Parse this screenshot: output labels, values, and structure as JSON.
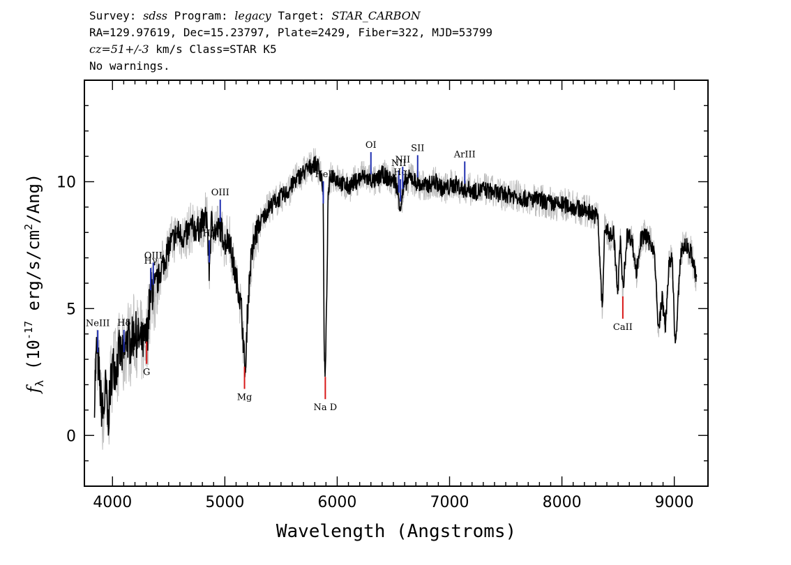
{
  "header": {
    "survey_label": "Survey:",
    "survey": "sdss",
    "program_label": "Program:",
    "program": "legacy",
    "target_label": "Target:",
    "target": "STAR_CARBON",
    "line2": "RA=129.97619, Dec=15.23797, Plate=2429, Fiber=322, MJD=53799",
    "cz": "cz=51+/-3",
    "class_text": "km/s Class=STAR K5",
    "warnings": "No warnings."
  },
  "chart_data": {
    "type": "line",
    "xlabel": "Wavelength (Angstroms)",
    "ylabel": "f_λ (10^-17 erg/s/cm^2/Ang)",
    "xlim": [
      3750,
      9300
    ],
    "ylim": [
      -2,
      14
    ],
    "x_ticks": [
      4000,
      5000,
      6000,
      7000,
      8000,
      9000
    ],
    "y_ticks": [
      0,
      5,
      10
    ],
    "grid": false,
    "colors": {
      "flux": "#000000",
      "error": "#bdbdbd",
      "emission": "#1f2fb0",
      "absorption": "#d81818"
    },
    "series": [
      {
        "values_description_free": true,
        "x": [
          3840,
          3860,
          3880,
          3900,
          3920,
          3940,
          3960,
          3980,
          4000,
          4030,
          4060,
          4100,
          4130,
          4160,
          4200,
          4240,
          4280,
          4310,
          4330,
          4350,
          4380,
          4420,
          4470,
          4520,
          4580,
          4640,
          4700,
          4760,
          4800,
          4840,
          4860,
          4880,
          4920,
          4960,
          5000,
          5040,
          5080,
          5120,
          5150,
          5170,
          5185,
          5200,
          5230,
          5270,
          5320,
          5380,
          5440,
          5500,
          5560,
          5620,
          5680,
          5740,
          5790,
          5830,
          5860,
          5875,
          5885,
          5895,
          5905,
          5920,
          5950,
          6000,
          6050,
          6100,
          6160,
          6220,
          6280,
          6340,
          6400,
          6460,
          6520,
          6563,
          6600,
          6650,
          6700,
          6760,
          6820,
          6880,
          6940,
          7000,
          7060,
          7120,
          7180,
          7240,
          7300,
          7380,
          7460,
          7540,
          7620,
          7700,
          7780,
          7860,
          7940,
          8020,
          8100,
          8180,
          8260,
          8320,
          8360,
          8380,
          8420,
          8460,
          8498,
          8520,
          8542,
          8580,
          8620,
          8662,
          8700,
          8740,
          8780,
          8820,
          8860,
          8890,
          8920,
          8950,
          8980,
          9010,
          9060,
          9100,
          9150,
          9200
        ],
        "y": [
          1.6,
          3.5,
          2.5,
          1.2,
          0.8,
          2.0,
          0.5,
          1.8,
          2.8,
          2.6,
          3.3,
          3.0,
          3.9,
          3.6,
          4.1,
          3.7,
          3.6,
          4.0,
          5.2,
          5.8,
          5.6,
          6.4,
          7.0,
          7.6,
          8.0,
          7.8,
          8.2,
          8.1,
          8.4,
          8.6,
          6.5,
          8.4,
          8.0,
          8.2,
          7.6,
          7.8,
          6.6,
          5.8,
          4.9,
          3.2,
          2.4,
          4.8,
          6.8,
          7.9,
          8.4,
          8.9,
          9.2,
          9.4,
          9.6,
          10.0,
          10.3,
          10.5,
          10.7,
          10.6,
          10.2,
          9.6,
          2.8,
          2.5,
          5.0,
          9.6,
          10.3,
          10.1,
          9.9,
          9.8,
          10.0,
          10.2,
          10.1,
          10.0,
          10.3,
          10.1,
          10.0,
          9.0,
          9.9,
          10.2,
          10.0,
          9.8,
          9.9,
          10.0,
          9.7,
          9.8,
          9.9,
          9.7,
          9.7,
          9.6,
          9.7,
          9.6,
          9.5,
          9.5,
          9.4,
          9.3,
          9.3,
          9.2,
          9.1,
          9.1,
          9.0,
          8.9,
          8.8,
          8.6,
          4.8,
          8.2,
          7.9,
          8.0,
          5.5,
          7.8,
          5.7,
          7.9,
          7.8,
          6.4,
          7.7,
          7.9,
          7.6,
          7.4,
          4.0,
          5.5,
          4.2,
          6.6,
          7.0,
          3.4,
          7.3,
          7.5,
          7.2,
          6.1
        ]
      }
    ],
    "annotations": [
      {
        "label": "NeIII",
        "wavelength": 3869,
        "kind": "emission"
      },
      {
        "label": "Hδ",
        "wavelength": 4102,
        "kind": "emission"
      },
      {
        "label": "Hγ",
        "wavelength": 4340,
        "kind": "emission"
      },
      {
        "label": "OIII",
        "wavelength": 4363,
        "kind": "emission"
      },
      {
        "label": "Hβ",
        "wavelength": 4861,
        "kind": "emission"
      },
      {
        "label": "OIII",
        "wavelength": 4959,
        "kind": "emission"
      },
      {
        "label": "HeI",
        "wavelength": 5876,
        "kind": "emission"
      },
      {
        "label": "OI",
        "wavelength": 6300,
        "kind": "emission"
      },
      {
        "label": "NII",
        "wavelength": 6548,
        "kind": "emission"
      },
      {
        "label": "Hα",
        "wavelength": 6563,
        "kind": "emission"
      },
      {
        "label": "NII",
        "wavelength": 6583,
        "kind": "emission"
      },
      {
        "label": "SII",
        "wavelength": 6716,
        "kind": "emission"
      },
      {
        "label": "ArIII",
        "wavelength": 7135,
        "kind": "emission"
      },
      {
        "label": "G",
        "wavelength": 4304,
        "kind": "absorption"
      },
      {
        "label": "Mg",
        "wavelength": 5175,
        "kind": "absorption"
      },
      {
        "label": "Na D",
        "wavelength": 5894,
        "kind": "absorption"
      },
      {
        "label": "CaII",
        "wavelength": 8542,
        "kind": "absorption"
      }
    ]
  }
}
